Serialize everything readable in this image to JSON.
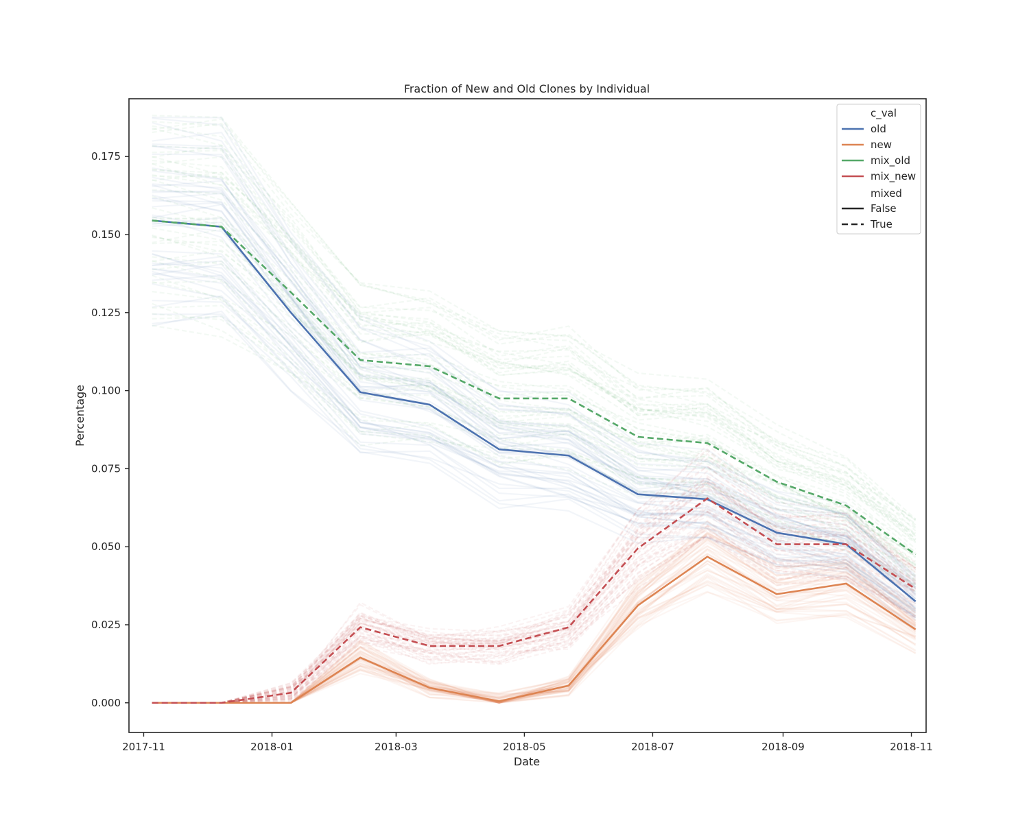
{
  "chart_data": {
    "type": "line",
    "title": "Fraction of New and Old Clones by Individual",
    "xlabel": "Date",
    "ylabel": "Percentage",
    "xlim": [
      "2017-10-25",
      "2018-11-08"
    ],
    "ylim": [
      -0.0095,
      0.1935
    ],
    "x_ticks": [
      "2017-11",
      "2018-01",
      "2018-03",
      "2018-05",
      "2018-07",
      "2018-09",
      "2018-11"
    ],
    "y_ticks": [
      "0.000",
      "0.025",
      "0.050",
      "0.075",
      "0.100",
      "0.125",
      "0.150",
      "0.175"
    ],
    "grid": false,
    "legend_position": "top-right",
    "legend": {
      "hue_title": "c_val",
      "hue_entries": [
        {
          "label": "old",
          "color": "#4c72b0"
        },
        {
          "label": "new",
          "color": "#dd8452"
        },
        {
          "label": "mix_old",
          "color": "#55a868"
        },
        {
          "label": "mix_new",
          "color": "#c44e52"
        }
      ],
      "style_title": "mixed",
      "style_entries": [
        {
          "label": "False",
          "dash": "solid"
        },
        {
          "label": "True",
          "dash": "dashed"
        }
      ]
    },
    "x": [
      "2017-11-05",
      "2017-12-08",
      "2018-01-10",
      "2018-02-12",
      "2018-03-17",
      "2018-04-19",
      "2018-05-22",
      "2018-06-24",
      "2018-07-27",
      "2018-08-29",
      "2018-10-01",
      "2018-11-03"
    ],
    "series": [
      {
        "name": "old",
        "mixed": "False",
        "color": "#4c72b0",
        "values": [
          0.1545,
          0.1525,
          0.125,
          0.0995,
          0.0955,
          0.0812,
          0.0792,
          0.0668,
          0.0652,
          0.0545,
          0.0508,
          0.0325
        ]
      },
      {
        "name": "new",
        "mixed": "False",
        "color": "#dd8452",
        "values": [
          0.0,
          0.0,
          0.0,
          0.0145,
          0.0048,
          0.0005,
          0.0055,
          0.0312,
          0.0468,
          0.0348,
          0.0382,
          0.0235
        ]
      },
      {
        "name": "mix_old",
        "mixed": "True",
        "color": "#55a868",
        "values": [
          0.1545,
          0.1525,
          0.1315,
          0.1098,
          0.1078,
          0.0975,
          0.0975,
          0.0852,
          0.0832,
          0.0708,
          0.0632,
          0.0475
        ]
      },
      {
        "name": "mix_new",
        "mixed": "True",
        "color": "#c44e52",
        "values": [
          0.0,
          0.0,
          0.0032,
          0.0242,
          0.0182,
          0.0182,
          0.0242,
          0.0495,
          0.0655,
          0.0508,
          0.0508,
          0.0365
        ]
      }
    ]
  }
}
